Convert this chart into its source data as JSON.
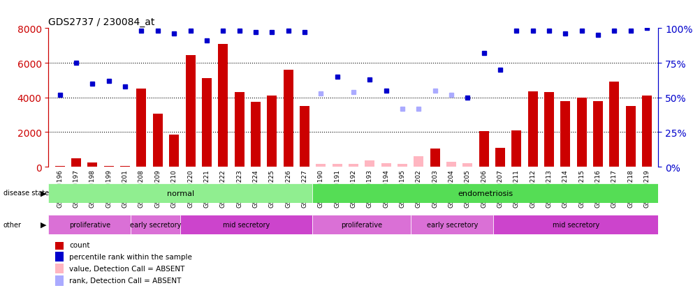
{
  "title": "GDS2737 / 230084_at",
  "samples": [
    "GSM150196",
    "GSM150197",
    "GSM150198",
    "GSM150199",
    "GSM150201",
    "GSM150208",
    "GSM150209",
    "GSM150210",
    "GSM150220",
    "GSM150221",
    "GSM150222",
    "GSM150223",
    "GSM150224",
    "GSM150225",
    "GSM150226",
    "GSM150227",
    "GSM150190",
    "GSM150191",
    "GSM150192",
    "GSM150193",
    "GSM150194",
    "GSM150195",
    "GSM150202",
    "GSM150203",
    "GSM150204",
    "GSM150205",
    "GSM150206",
    "GSM150207",
    "GSM150211",
    "GSM150212",
    "GSM150213",
    "GSM150214",
    "GSM150215",
    "GSM150216",
    "GSM150217",
    "GSM150218",
    "GSM150219"
  ],
  "bar_values": [
    50,
    500,
    250,
    60,
    60,
    4500,
    3050,
    1850,
    6450,
    5100,
    7100,
    4300,
    3750,
    4100,
    5600,
    3500,
    150,
    150,
    150,
    350,
    200,
    150,
    600,
    1050,
    300,
    200,
    2050,
    1100,
    2100,
    4350,
    4300,
    3800,
    4000,
    3800,
    4900,
    3500,
    4100
  ],
  "bar_absent": [
    false,
    false,
    false,
    false,
    false,
    false,
    false,
    false,
    false,
    false,
    false,
    false,
    false,
    false,
    false,
    false,
    true,
    true,
    true,
    true,
    true,
    true,
    true,
    false,
    true,
    true,
    false,
    false,
    false,
    false,
    false,
    false,
    false,
    false,
    false,
    false,
    false
  ],
  "rank_values": [
    52,
    75,
    60,
    62,
    58,
    98,
    98,
    96,
    98,
    91,
    98,
    98,
    97,
    97,
    98,
    97,
    53,
    65,
    54,
    63,
    55,
    42,
    42,
    55,
    52,
    50,
    82,
    70,
    98,
    98,
    98,
    96,
    98,
    95,
    98,
    98,
    100
  ],
  "rank_absent": [
    false,
    false,
    false,
    false,
    false,
    false,
    false,
    false,
    false,
    false,
    false,
    false,
    false,
    false,
    false,
    false,
    true,
    false,
    true,
    false,
    false,
    true,
    true,
    true,
    true,
    false,
    false,
    false,
    false,
    false,
    false,
    false,
    false,
    false,
    false,
    false,
    false
  ],
  "disease_state_groups": [
    {
      "label": "normal",
      "start": 0,
      "end": 16,
      "color": "#90EE90"
    },
    {
      "label": "endometriosis",
      "start": 16,
      "end": 37,
      "color": "#55DD55"
    }
  ],
  "other_groups": [
    {
      "label": "proliferative",
      "start": 0,
      "end": 5,
      "color": "#DA70D6"
    },
    {
      "label": "early secretory",
      "start": 5,
      "end": 8,
      "color": "#DA70D6"
    },
    {
      "label": "mid secretory",
      "start": 8,
      "end": 16,
      "color": "#CC44CC"
    },
    {
      "label": "proliferative",
      "start": 16,
      "end": 22,
      "color": "#DA70D6"
    },
    {
      "label": "early secretory",
      "start": 22,
      "end": 27,
      "color": "#DA70D6"
    },
    {
      "label": "mid secretory",
      "start": 27,
      "end": 37,
      "color": "#CC44CC"
    }
  ],
  "ylim": [
    0,
    8000
  ],
  "yticks": [
    0,
    2000,
    4000,
    6000,
    8000
  ],
  "right_yticks": [
    0,
    25,
    50,
    75,
    100
  ],
  "bar_color": "#CC0000",
  "bar_absent_color": "#FFB6C1",
  "rank_color": "#0000CC",
  "rank_absent_color": "#AAAAFF",
  "legend_items": [
    {
      "label": "count",
      "color": "#CC0000"
    },
    {
      "label": "percentile rank within the sample",
      "color": "#0000CC"
    },
    {
      "label": "value, Detection Call = ABSENT",
      "color": "#FFB6C1"
    },
    {
      "label": "rank, Detection Call = ABSENT",
      "color": "#AAAAFF"
    }
  ]
}
